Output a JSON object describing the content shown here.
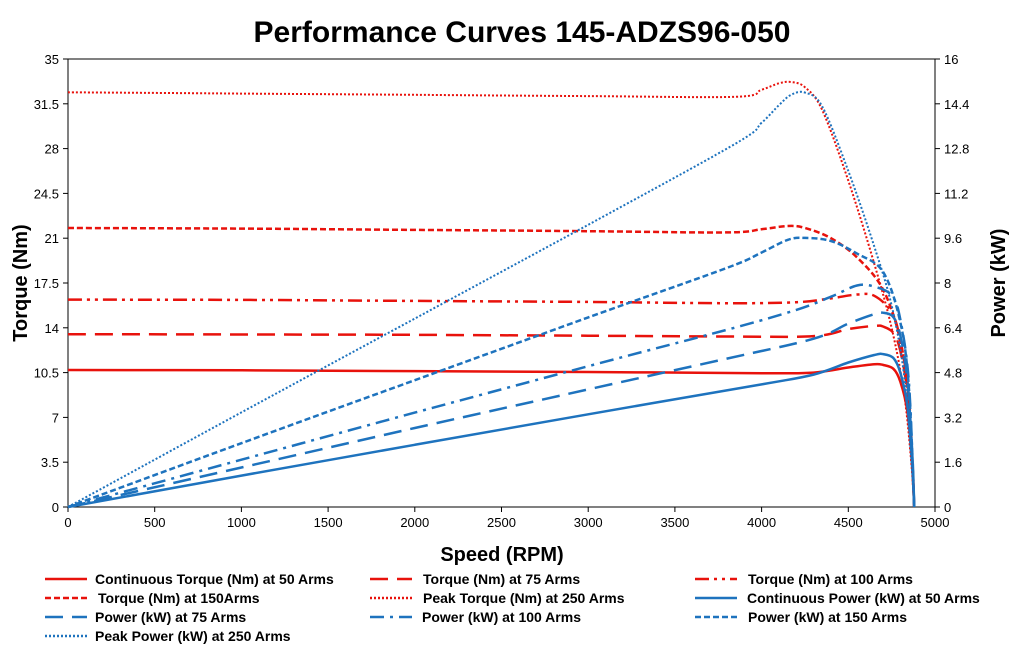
{
  "chart_data": {
    "type": "line",
    "title": "Performance Curves 145-ADZS96-050",
    "xlabel": "Speed (RPM)",
    "ylabel": "Torque (Nm)",
    "y2label": "Power (kW)",
    "xlim": [
      0,
      5000
    ],
    "ylim": [
      0,
      35
    ],
    "y2lim": [
      0,
      16
    ],
    "xticks": [
      "0",
      "500",
      "1000",
      "1500",
      "2000",
      "2500",
      "3000",
      "3500",
      "4000",
      "4500",
      "5000"
    ],
    "yticks": [
      "0",
      "3.5",
      "7",
      "10.5",
      "14",
      "17.5",
      "21",
      "24.5",
      "28",
      "31.5",
      "35"
    ],
    "y2ticks": [
      "0",
      "1.6",
      "3.2",
      "4.8",
      "6.4",
      "8",
      "9.6",
      "11.2",
      "12.8",
      "14.4",
      "16"
    ],
    "grid": false,
    "legend_position": "bottom",
    "series": [
      {
        "name": "Continuous Torque (Nm) at 50 Arms",
        "axis": "left",
        "color": "#e8120c",
        "dash": "solid",
        "x": [
          0,
          1000,
          2000,
          3000,
          4000,
          4300,
          4500,
          4650,
          4700,
          4760,
          4800,
          4840,
          4870,
          4880
        ],
        "y": [
          10.7,
          10.68,
          10.62,
          10.55,
          10.45,
          10.5,
          10.9,
          11.15,
          11.1,
          10.8,
          9.8,
          7.5,
          3.0,
          0
        ]
      },
      {
        "name": "Torque (Nm) at 75 Arms",
        "axis": "left",
        "color": "#e8120c",
        "dash": "dash",
        "x": [
          0,
          1000,
          2000,
          3000,
          3800,
          4300,
          4500,
          4650,
          4700,
          4760,
          4800,
          4840,
          4870,
          4880
        ],
        "y": [
          13.5,
          13.48,
          13.45,
          13.38,
          13.32,
          13.35,
          13.9,
          14.15,
          14.1,
          13.6,
          12.2,
          9.0,
          3.5,
          0
        ]
      },
      {
        "name": "Torque (Nm) at 100 Arms",
        "axis": "left",
        "color": "#e8120c",
        "dash": "dashdotdot",
        "x": [
          0,
          1000,
          2000,
          3000,
          3800,
          4200,
          4400,
          4550,
          4650,
          4750,
          4800,
          4850,
          4880
        ],
        "y": [
          16.2,
          16.18,
          16.1,
          16.02,
          15.92,
          16.0,
          16.3,
          16.6,
          16.5,
          15.2,
          13.0,
          8.5,
          0
        ]
      },
      {
        "name": "Torque (Nm) at 150Arms",
        "axis": "left",
        "color": "#e8120c",
        "dash": "shortdash",
        "x": [
          0,
          1000,
          2000,
          3000,
          3800,
          4000,
          4150,
          4250,
          4400,
          4550,
          4700,
          4800,
          4850,
          4880
        ],
        "y": [
          21.8,
          21.75,
          21.65,
          21.55,
          21.45,
          21.7,
          21.95,
          21.8,
          21.0,
          19.5,
          17.0,
          13.0,
          8.0,
          0
        ]
      },
      {
        "name": "Peak Torque (Nm) at 250  Arms",
        "axis": "left",
        "color": "#e8120c",
        "dash": "dot",
        "x": [
          0,
          1000,
          2000,
          3000,
          3850,
          4000,
          4100,
          4170,
          4250,
          4350,
          4500,
          4650,
          4750,
          4820,
          4860,
          4880
        ],
        "y": [
          32.4,
          32.3,
          32.2,
          32.1,
          32.05,
          32.6,
          33.1,
          33.2,
          32.8,
          31.0,
          25.5,
          19.0,
          14.0,
          9.0,
          4.0,
          0
        ]
      },
      {
        "name": "Continuous Power (kW) at 50 Arms",
        "axis": "right",
        "color": "#1e73be",
        "dash": "solid",
        "x": [
          0,
          1000,
          2000,
          3000,
          4000,
          4300,
          4500,
          4650,
          4700,
          4760,
          4800,
          4840,
          4870,
          4880
        ],
        "y": [
          0,
          1.12,
          2.22,
          3.31,
          4.38,
          4.73,
          5.16,
          5.43,
          5.46,
          5.32,
          4.8,
          3.65,
          1.5,
          0
        ]
      },
      {
        "name": "Power (kW) at 75 Arms",
        "axis": "right",
        "color": "#1e73be",
        "dash": "dash",
        "x": [
          0,
          1000,
          2000,
          3000,
          3800,
          4300,
          4500,
          4650,
          4700,
          4760,
          4800,
          4840,
          4870,
          4880
        ],
        "y": [
          0,
          1.41,
          2.82,
          4.2,
          5.3,
          6.01,
          6.55,
          6.89,
          6.94,
          6.78,
          6.13,
          4.56,
          1.8,
          0
        ]
      },
      {
        "name": "Power (kW) at 100 Arms",
        "axis": "right",
        "color": "#1e73be",
        "dash": "dashdot",
        "x": [
          0,
          1000,
          2000,
          3000,
          3800,
          4200,
          4400,
          4550,
          4650,
          4750,
          4800,
          4850,
          4880
        ],
        "y": [
          0,
          1.69,
          3.37,
          5.03,
          6.33,
          7.04,
          7.51,
          7.91,
          7.87,
          7.56,
          6.7,
          4.4,
          0
        ]
      },
      {
        "name": "Power (kW) at 150 Arms",
        "axis": "right",
        "color": "#1e73be",
        "dash": "shortdash",
        "x": [
          0,
          1000,
          2000,
          3000,
          3800,
          4000,
          4150,
          4250,
          4400,
          4550,
          4700,
          4800,
          4850,
          4880
        ],
        "y": [
          0,
          2.28,
          4.53,
          6.77,
          8.54,
          9.09,
          9.54,
          9.61,
          9.5,
          9.05,
          8.4,
          6.6,
          4.2,
          0
        ]
      },
      {
        "name": "Peak Power (kW) at 250 Arms",
        "axis": "right",
        "color": "#1e73be",
        "dash": "dot",
        "x": [
          0,
          1000,
          2000,
          3000,
          3850,
          4000,
          4100,
          4170,
          4250,
          4350,
          4500,
          4650,
          4750,
          4820,
          4860,
          4880
        ],
        "y": [
          0,
          3.38,
          6.73,
          10.08,
          12.98,
          13.72,
          14.35,
          14.72,
          14.8,
          14.3,
          12.0,
          9.3,
          7.2,
          4.8,
          2.0,
          0
        ]
      }
    ]
  }
}
